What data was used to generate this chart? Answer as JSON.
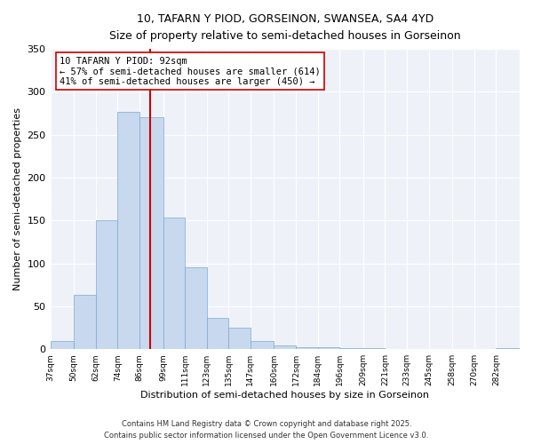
{
  "title": "10, TAFARN Y PIOD, GORSEINON, SWANSEA, SA4 4YD",
  "subtitle": "Size of property relative to semi-detached houses in Gorseinon",
  "xlabel": "Distribution of semi-detached houses by size in Gorseinon",
  "ylabel": "Number of semi-detached properties",
  "bar_color": "#c8d8ee",
  "bar_edge_color": "#7aaad0",
  "vline_value": 92,
  "vline_color": "#cc0000",
  "annotation_title": "10 TAFARN Y PIOD: 92sqm",
  "annotation_line1": "← 57% of semi-detached houses are smaller (614)",
  "annotation_line2": "41% of semi-detached houses are larger (450) →",
  "annotation_box_color": "#ffffff",
  "annotation_box_edge": "#cc0000",
  "categories": [
    "37sqm",
    "50sqm",
    "62sqm",
    "74sqm",
    "86sqm",
    "99sqm",
    "111sqm",
    "123sqm",
    "135sqm",
    "147sqm",
    "160sqm",
    "172sqm",
    "184sqm",
    "196sqm",
    "209sqm",
    "221sqm",
    "233sqm",
    "245sqm",
    "258sqm",
    "270sqm",
    "282sqm"
  ],
  "values": [
    10,
    63,
    150,
    277,
    270,
    153,
    95,
    36,
    25,
    10,
    4,
    2,
    2,
    1,
    1,
    0,
    0,
    0,
    0,
    0,
    1
  ],
  "bin_edges": [
    37,
    50,
    62,
    74,
    86,
    99,
    111,
    123,
    135,
    147,
    160,
    172,
    184,
    196,
    209,
    221,
    233,
    245,
    258,
    270,
    282,
    295
  ],
  "ylim": [
    0,
    350
  ],
  "yticks": [
    0,
    50,
    100,
    150,
    200,
    250,
    300,
    350
  ],
  "footer1": "Contains HM Land Registry data © Crown copyright and database right 2025.",
  "footer2": "Contains public sector information licensed under the Open Government Licence v3.0.",
  "background_color": "#ffffff",
  "plot_bg_color": "#eef2f8",
  "grid_color": "#ffffff"
}
